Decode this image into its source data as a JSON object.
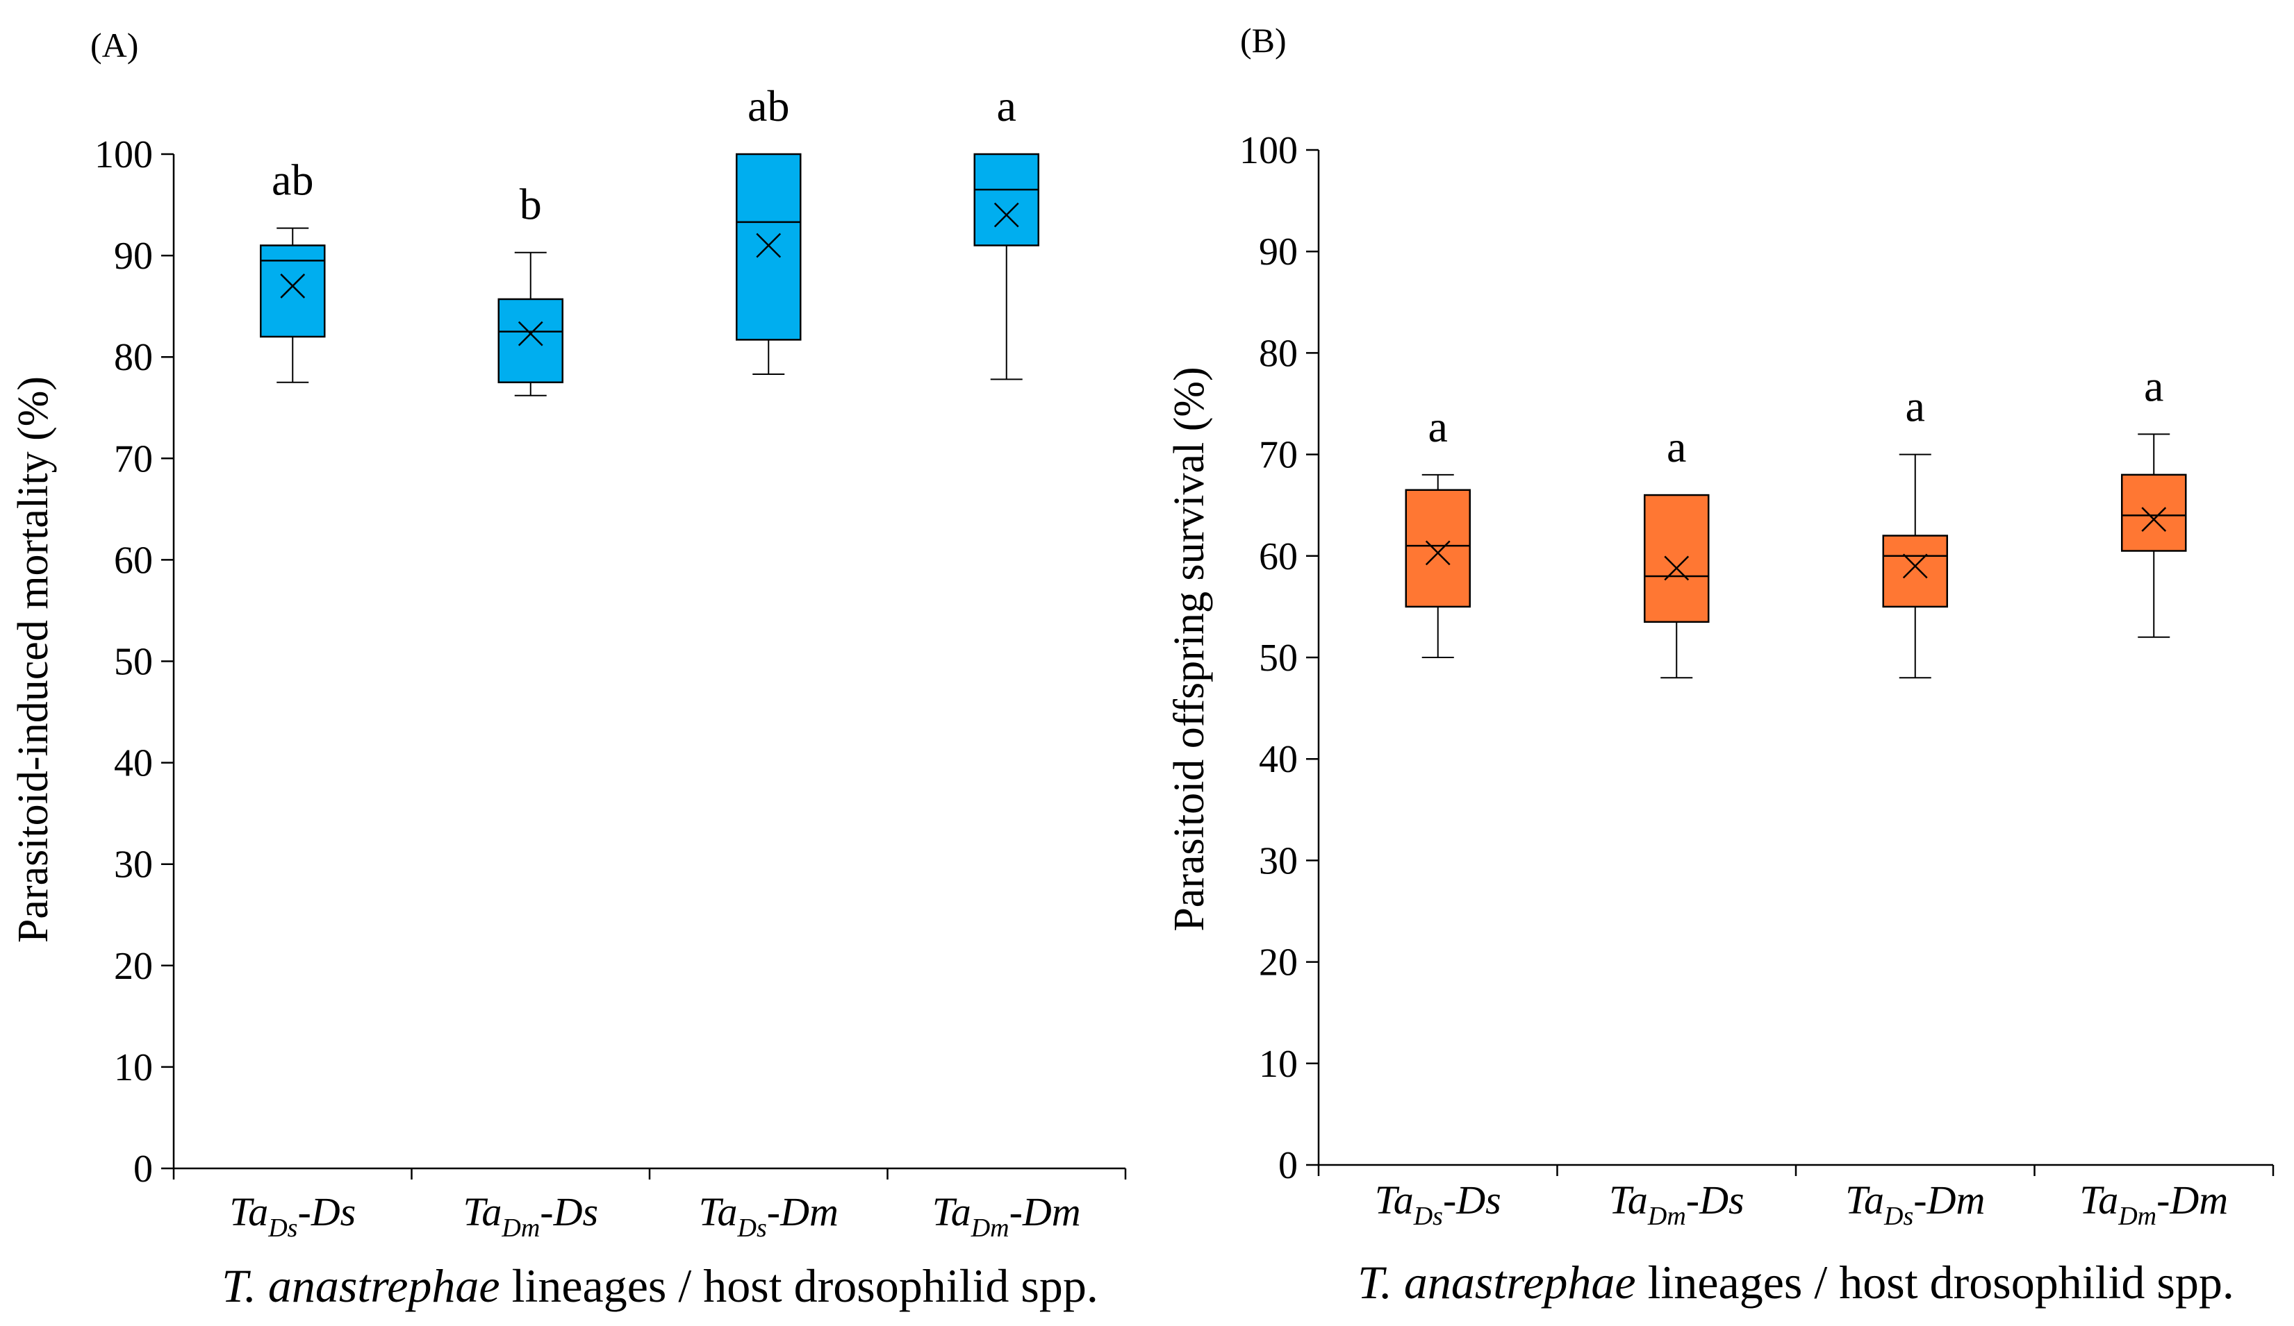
{
  "chart_data": [
    {
      "type": "box",
      "panel_label": "(A)",
      "ylabel": "Parasitoid-induced mortality (%)",
      "xlabel": {
        "italic": "T. anastrephae",
        "rest": " lineages / host drosophilid spp."
      },
      "ylim": [
        0,
        100
      ],
      "yticks": [
        0,
        10,
        20,
        30,
        40,
        50,
        60,
        70,
        80,
        90,
        100
      ],
      "color": "#00AEEF",
      "categories": [
        {
          "main": "Ta",
          "sub": "Ds",
          "suffix": "-Ds"
        },
        {
          "main": "Ta",
          "sub": "Dm",
          "suffix": "-Ds"
        },
        {
          "main": "Ta",
          "sub": "Ds",
          "suffix": "-Dm"
        },
        {
          "main": "Ta",
          "sub": "Dm",
          "suffix": "-Dm"
        }
      ],
      "boxes": [
        {
          "min": 77.5,
          "q1": 82.0,
          "median": 89.5,
          "q3": 91.0,
          "max": 92.7,
          "mean": 87.0,
          "letter": "ab"
        },
        {
          "min": 76.2,
          "q1": 77.5,
          "median": 82.5,
          "q3": 85.7,
          "max": 90.3,
          "mean": 82.3,
          "letter": "b"
        },
        {
          "min": 78.3,
          "q1": 81.7,
          "median": 93.3,
          "q3": 100.0,
          "max": 100.0,
          "mean": 91.0,
          "letter": "ab"
        },
        {
          "min": 77.8,
          "q1": 91.0,
          "median": 96.5,
          "q3": 100.0,
          "max": 100.0,
          "mean": 94.0,
          "letter": "a"
        }
      ]
    },
    {
      "type": "box",
      "panel_label": "(B)",
      "ylabel": "Parasitoid offspring survival (%)",
      "xlabel": {
        "italic": "T. anastrephae",
        "rest": " lineages / host drosophilid spp."
      },
      "ylim": [
        0,
        100
      ],
      "yticks": [
        0,
        10,
        20,
        30,
        40,
        50,
        60,
        70,
        80,
        90,
        100
      ],
      "color": "#FF7733",
      "categories": [
        {
          "main": "Ta",
          "sub": "Ds",
          "suffix": "-Ds"
        },
        {
          "main": "Ta",
          "sub": "Dm",
          "suffix": "-Ds"
        },
        {
          "main": "Ta",
          "sub": "Ds",
          "suffix": "-Dm"
        },
        {
          "main": "Ta",
          "sub": "Dm",
          "suffix": "-Dm"
        }
      ],
      "boxes": [
        {
          "min": 50.0,
          "q1": 55.0,
          "median": 61.0,
          "q3": 66.5,
          "max": 68.0,
          "mean": 60.3,
          "letter": "a"
        },
        {
          "min": 48.0,
          "q1": 53.5,
          "median": 58.0,
          "q3": 66.0,
          "max": 66.0,
          "mean": 58.8,
          "letter": "a"
        },
        {
          "min": 48.0,
          "q1": 55.0,
          "median": 60.0,
          "q3": 62.0,
          "max": 70.0,
          "mean": 59.0,
          "letter": "a"
        },
        {
          "min": 52.0,
          "q1": 60.5,
          "median": 64.0,
          "q3": 68.0,
          "max": 72.0,
          "mean": 63.6,
          "letter": "a"
        }
      ]
    }
  ]
}
